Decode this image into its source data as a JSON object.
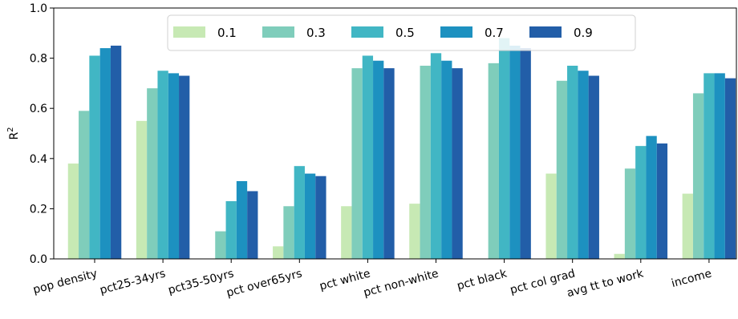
{
  "chart_data": {
    "type": "bar",
    "title": "",
    "xlabel": "",
    "ylabel": "R",
    "ylabel_superscript": "2",
    "ylim": [
      0,
      1.0
    ],
    "yticks": [
      "0.0",
      "0.2",
      "0.4",
      "0.6",
      "0.8",
      "1.0"
    ],
    "categories": [
      "pop density",
      "pct25-34yrs",
      "pct35-50yrs",
      "pct over65yrs",
      "pct white",
      "pct non-white",
      "pct black",
      "pct col grad",
      "avg tt to work",
      "income"
    ],
    "series": [
      {
        "name": "0.1",
        "color": "#c7e9b4",
        "values": [
          0.38,
          0.55,
          0.0,
          0.05,
          0.21,
          0.22,
          0.0,
          0.34,
          0.02,
          0.26
        ]
      },
      {
        "name": "0.3",
        "color": "#7fcdbb",
        "values": [
          0.59,
          0.68,
          0.11,
          0.21,
          0.76,
          0.77,
          0.78,
          0.71,
          0.36,
          0.66
        ]
      },
      {
        "name": "0.5",
        "color": "#41b6c4",
        "values": [
          0.81,
          0.75,
          0.23,
          0.37,
          0.81,
          0.82,
          0.88,
          0.77,
          0.45,
          0.74
        ]
      },
      {
        "name": "0.7",
        "color": "#1d91c0",
        "values": [
          0.84,
          0.74,
          0.31,
          0.34,
          0.79,
          0.79,
          0.85,
          0.75,
          0.49,
          0.74
        ]
      },
      {
        "name": "0.9",
        "color": "#225ea8",
        "values": [
          0.85,
          0.73,
          0.27,
          0.33,
          0.76,
          0.76,
          0.84,
          0.73,
          0.46,
          0.72
        ]
      }
    ],
    "legend": {
      "placement": "top-center",
      "columns": 5
    },
    "grid": false
  }
}
